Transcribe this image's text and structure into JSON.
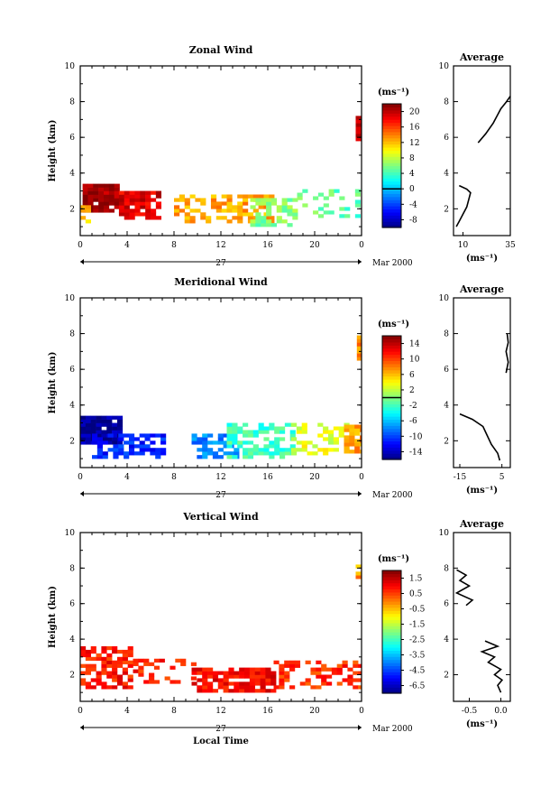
{
  "chart_data": [
    {
      "type": "heatmap",
      "title": "Zonal Wind",
      "ylabel": "Height (km)",
      "xlabel": "",
      "xticks": [
        "0",
        "4",
        "8",
        "12",
        "16",
        "20",
        "0"
      ],
      "yticks": [
        "2",
        "4",
        "6",
        "8",
        "10"
      ],
      "xlim": [
        0,
        24
      ],
      "ylim": [
        0.5,
        10
      ],
      "date_center": "27",
      "date_right": "Mar 2000",
      "colorbar": {
        "unit": "(ms⁻¹)",
        "ticks": [
          "-8",
          "-4",
          "0",
          "4",
          "8",
          "12",
          "16",
          "20"
        ],
        "range": [
          -10,
          22
        ],
        "zero_line": 0
      },
      "average": {
        "title": "Average",
        "unit": "(ms⁻¹)",
        "xticks": [
          "10",
          "35"
        ],
        "xlim": [
          5,
          35
        ],
        "yticks": [
          "2",
          "4",
          "6",
          "8",
          "10"
        ],
        "profile": [
          [
            6.5,
            1.0
          ],
          [
            8,
            1.3
          ],
          [
            10,
            1.7
          ],
          [
            12,
            2.1
          ],
          [
            13,
            2.5
          ],
          [
            14,
            2.9
          ],
          [
            12,
            3.1
          ],
          [
            8,
            3.3
          ],
          [
            18,
            5.7
          ],
          [
            22,
            6.2
          ],
          [
            26,
            6.8
          ],
          [
            28,
            7.2
          ],
          [
            30,
            7.6
          ],
          [
            33,
            8.0
          ],
          [
            35,
            8.3
          ]
        ]
      },
      "blobs": [
        {
          "x0": 0.2,
          "x1": 3.3,
          "y0": 1.8,
          "y1": 3.4,
          "v": 21,
          "d": 0.95
        },
        {
          "x0": 3.3,
          "x1": 6.5,
          "y0": 1.4,
          "y1": 3.0,
          "v": 19,
          "d": 0.85
        },
        {
          "x0": 0.0,
          "x1": 0.8,
          "y0": 1.2,
          "y1": 2.0,
          "v": 12,
          "d": 0.7
        },
        {
          "x0": 8.0,
          "x1": 16.5,
          "y0": 1.2,
          "y1": 2.7,
          "v": 13,
          "d": 0.55
        },
        {
          "x0": 14.5,
          "x1": 18.5,
          "y0": 1.0,
          "y1": 2.6,
          "v": 6,
          "d": 0.5
        },
        {
          "x0": 18.5,
          "x1": 23.6,
          "y0": 1.5,
          "y1": 3.0,
          "v": 5,
          "d": 0.35
        },
        {
          "x0": 23.5,
          "x1": 24.0,
          "y0": 5.8,
          "y1": 7.2,
          "v": 20,
          "d": 0.9
        }
      ]
    },
    {
      "type": "heatmap",
      "title": "Meridional Wind",
      "ylabel": "Height (km)",
      "xlabel": "",
      "xticks": [
        "0",
        "4",
        "8",
        "12",
        "16",
        "20",
        "0"
      ],
      "yticks": [
        "2",
        "4",
        "6",
        "8",
        "10"
      ],
      "xlim": [
        0,
        24
      ],
      "ylim": [
        0.5,
        10
      ],
      "date_center": "27",
      "date_right": "Mar 2000",
      "colorbar": {
        "unit": "(ms⁻¹)",
        "ticks": [
          "-14",
          "-10",
          "-6",
          "-2",
          "2",
          "6",
          "10",
          "14"
        ],
        "range": [
          -16,
          16
        ],
        "zero_line": 0
      },
      "average": {
        "title": "Average",
        "unit": "(ms⁻¹)",
        "xticks": [
          "-15",
          "5"
        ],
        "xlim": [
          -18,
          9
        ],
        "yticks": [
          "2",
          "4",
          "6",
          "8",
          "10"
        ],
        "profile": [
          [
            4,
            0.9
          ],
          [
            3,
            1.3
          ],
          [
            0,
            1.8
          ],
          [
            -2,
            2.3
          ],
          [
            -4,
            2.8
          ],
          [
            -9,
            3.2
          ],
          [
            -15,
            3.5
          ],
          [
            7,
            5.8
          ],
          [
            8,
            6.4
          ],
          [
            7,
            7.0
          ],
          [
            8,
            7.5
          ],
          [
            7.5,
            8.0
          ]
        ]
      },
      "blobs": [
        {
          "x0": 0.0,
          "x1": 3.5,
          "y0": 1.8,
          "y1": 3.4,
          "v": -15,
          "d": 0.95
        },
        {
          "x0": 1.0,
          "x1": 7.0,
          "y0": 1.0,
          "y1": 2.2,
          "v": -11,
          "d": 0.6
        },
        {
          "x0": 9.5,
          "x1": 13.5,
          "y0": 1.0,
          "y1": 2.3,
          "v": -8,
          "d": 0.6
        },
        {
          "x0": 12.5,
          "x1": 18.0,
          "y0": 1.0,
          "y1": 3.0,
          "v": -2,
          "d": 0.55
        },
        {
          "x0": 18.0,
          "x1": 22.5,
          "y0": 1.2,
          "y1": 2.9,
          "v": 3,
          "d": 0.45
        },
        {
          "x0": 22.5,
          "x1": 24.0,
          "y0": 1.3,
          "y1": 2.8,
          "v": 7,
          "d": 0.8
        },
        {
          "x0": 23.6,
          "x1": 24.0,
          "y0": 6.5,
          "y1": 7.8,
          "v": 8,
          "d": 0.85
        }
      ]
    },
    {
      "type": "heatmap",
      "title": "Vertical Wind",
      "ylabel": "Height (km)",
      "xlabel": "Local Time",
      "xticks": [
        "0",
        "4",
        "8",
        "12",
        "16",
        "20",
        "0"
      ],
      "yticks": [
        "2",
        "4",
        "6",
        "8",
        "10"
      ],
      "xlim": [
        0,
        24
      ],
      "ylim": [
        0.5,
        10
      ],
      "date_center": "27",
      "date_right": "Mar 2000",
      "colorbar": {
        "unit": "(ms⁻¹)",
        "ticks": [
          "-6.5",
          "-4.5",
          "-3.5",
          "-2.5",
          "-1.5",
          "-0.5",
          "0.5",
          "1.5"
        ],
        "range": [
          -7,
          2
        ],
        "zero_line": null
      },
      "average": {
        "title": "Average",
        "unit": "(ms⁻¹)",
        "xticks": [
          "-0.5",
          "0.0"
        ],
        "xlim": [
          -0.75,
          0.15
        ],
        "yticks": [
          "2",
          "4",
          "6",
          "8",
          "10"
        ],
        "profile": [
          [
            0.0,
            1.0
          ],
          [
            -0.05,
            1.4
          ],
          [
            0.02,
            1.7
          ],
          [
            -0.1,
            2.0
          ],
          [
            0.0,
            2.3
          ],
          [
            -0.2,
            2.7
          ],
          [
            -0.1,
            3.0
          ],
          [
            -0.3,
            3.3
          ],
          [
            -0.05,
            3.6
          ],
          [
            -0.25,
            3.9
          ],
          [
            -0.55,
            5.9
          ],
          [
            -0.45,
            6.2
          ],
          [
            -0.7,
            6.6
          ],
          [
            -0.5,
            7.0
          ],
          [
            -0.65,
            7.3
          ],
          [
            -0.55,
            7.6
          ],
          [
            -0.7,
            7.9
          ]
        ]
      },
      "blobs": [
        {
          "x0": 0.0,
          "x1": 4.5,
          "y0": 1.2,
          "y1": 3.6,
          "v": 0.7,
          "d": 0.7
        },
        {
          "x0": 4.5,
          "x1": 9.5,
          "y0": 1.5,
          "y1": 2.8,
          "v": 0.6,
          "d": 0.4
        },
        {
          "x0": 9.5,
          "x1": 16.5,
          "y0": 1.0,
          "y1": 2.4,
          "v": 0.9,
          "d": 0.8
        },
        {
          "x0": 16.5,
          "x1": 24.0,
          "y0": 1.2,
          "y1": 2.8,
          "v": 0.5,
          "d": 0.45
        },
        {
          "x0": 23.5,
          "x1": 24.0,
          "y0": 6.8,
          "y1": 8.2,
          "v": -0.5,
          "d": 0.7
        }
      ]
    }
  ]
}
